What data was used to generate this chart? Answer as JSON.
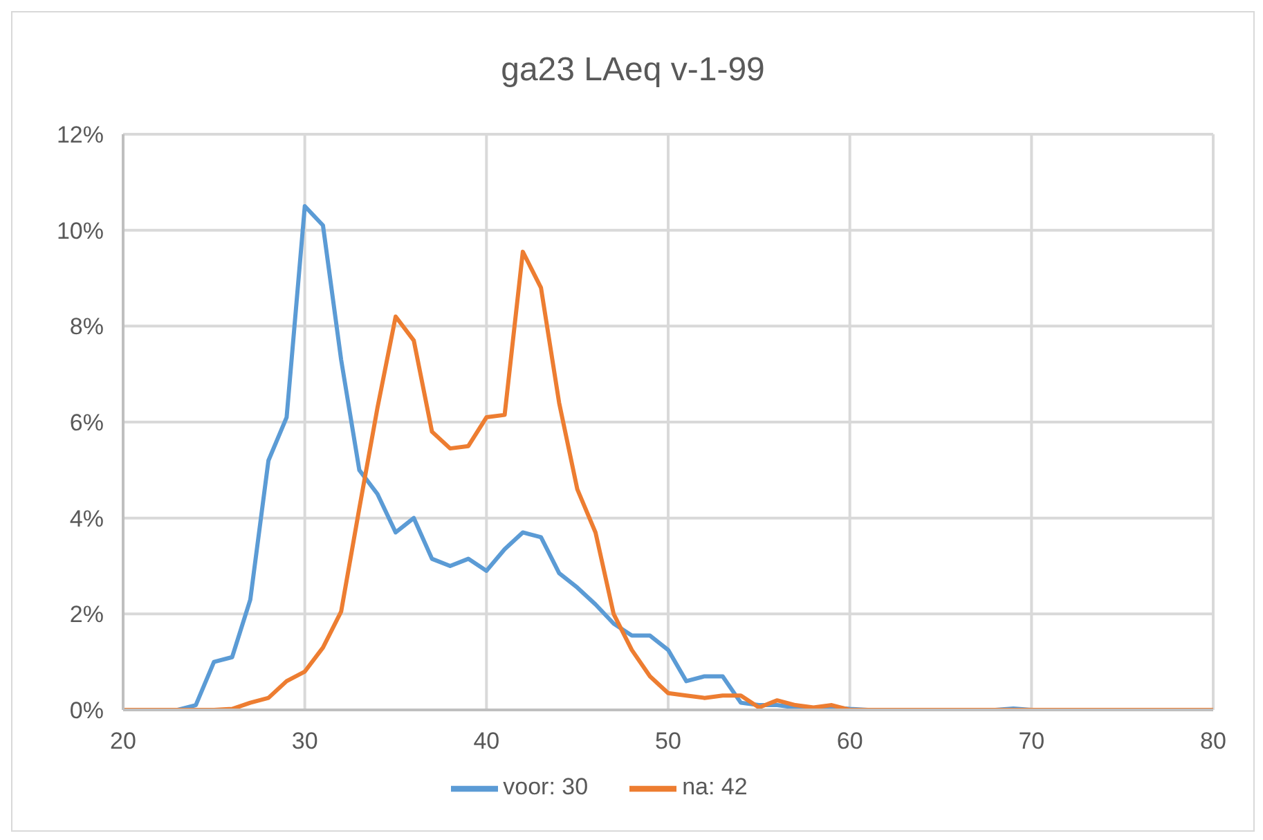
{
  "chart_data": {
    "type": "line",
    "title": "ga23 LAeq v-1-99",
    "x": [
      20,
      21,
      22,
      23,
      24,
      25,
      26,
      27,
      28,
      29,
      30,
      31,
      32,
      33,
      34,
      35,
      36,
      37,
      38,
      39,
      40,
      41,
      42,
      43,
      44,
      45,
      46,
      47,
      48,
      49,
      50,
      51,
      52,
      53,
      54,
      55,
      56,
      57,
      58,
      59,
      60,
      61,
      62,
      63,
      64,
      65,
      66,
      67,
      68,
      69,
      70,
      71,
      72,
      73,
      74,
      75,
      76,
      77,
      78,
      79,
      80
    ],
    "series": [
      {
        "name": "voor: 30",
        "color": "#5b9bd5",
        "values": [
          null,
          null,
          null,
          0,
          0.1,
          1.0,
          1.1,
          2.3,
          5.2,
          6.1,
          10.5,
          10.1,
          7.3,
          5.0,
          4.5,
          3.7,
          4.0,
          3.15,
          3.0,
          3.15,
          2.9,
          3.35,
          3.7,
          3.6,
          2.85,
          2.55,
          2.2,
          1.8,
          1.55,
          1.55,
          1.25,
          0.6,
          0.7,
          0.7,
          0.15,
          0.1,
          0.1,
          0.05,
          0,
          0.05,
          0.02,
          0,
          null,
          null,
          null,
          null,
          null,
          null,
          0,
          0.03,
          0,
          null,
          null,
          null,
          null,
          null,
          null,
          null,
          null,
          null,
          null
        ]
      },
      {
        "name": "na: 42",
        "color": "#ed7d31",
        "values": [
          0,
          0,
          0,
          0,
          0,
          0,
          0.02,
          0.15,
          0.25,
          0.6,
          0.8,
          1.3,
          2.05,
          4.2,
          6.3,
          8.2,
          7.7,
          5.8,
          5.45,
          5.5,
          6.1,
          6.15,
          9.55,
          8.8,
          6.4,
          4.6,
          3.7,
          2.0,
          1.25,
          0.7,
          0.35,
          0.3,
          0.25,
          0.3,
          0.3,
          0.05,
          0.2,
          0.1,
          0.05,
          0.1,
          0,
          0,
          0,
          0,
          0,
          0,
          0,
          0,
          0,
          0,
          0,
          0,
          0,
          0,
          0,
          0,
          0,
          0,
          0,
          0,
          0
        ]
      }
    ],
    "xlim": [
      20,
      80
    ],
    "xticks": [
      20,
      30,
      40,
      50,
      60,
      70,
      80
    ],
    "ylim": [
      0,
      12
    ],
    "yticks": [
      {
        "value": 0,
        "label": "0%"
      },
      {
        "value": 2,
        "label": "2%"
      },
      {
        "value": 4,
        "label": "4%"
      },
      {
        "value": 6,
        "label": "6%"
      },
      {
        "value": 8,
        "label": "8%"
      },
      {
        "value": 10,
        "label": "10%"
      },
      {
        "value": 12,
        "label": "12%"
      }
    ],
    "grid": true,
    "legend": "bottom",
    "marker": "none",
    "line_style": "solid"
  }
}
